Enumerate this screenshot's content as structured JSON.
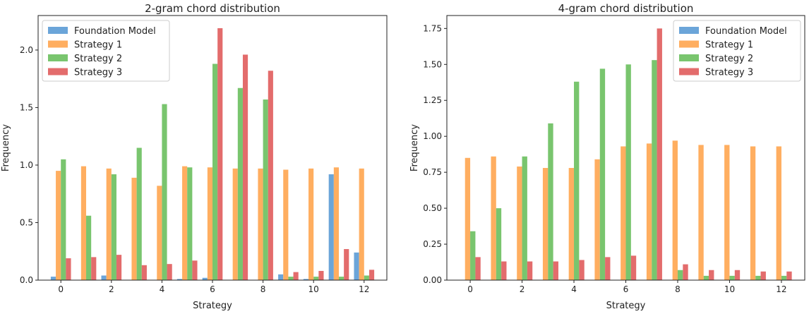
{
  "chart_data": [
    {
      "type": "bar",
      "title": "2-gram chord distribution",
      "xlabel": "Strategy",
      "ylabel": "Frequency",
      "categories": [
        0,
        1,
        2,
        3,
        4,
        5,
        6,
        7,
        8,
        9,
        10,
        11,
        12
      ],
      "xticks": [
        0,
        2,
        4,
        6,
        8,
        10,
        12
      ],
      "yticks": [
        0.0,
        0.5,
        1.0,
        1.5,
        2.0
      ],
      "ytick_labels": [
        "0.0",
        "0.5",
        "1.0",
        "1.5",
        "2.0"
      ],
      "xlim": [
        -0.9,
        12.9
      ],
      "ylim": [
        0,
        2.3
      ],
      "legend_position": "top-left",
      "grid": false,
      "series": [
        {
          "name": "Foundation Model",
          "color": "#5b9bd5",
          "values": [
            0.03,
            0,
            0.04,
            0,
            0,
            0.01,
            0.02,
            0,
            0,
            0.05,
            0.01,
            0.92,
            0.24
          ]
        },
        {
          "name": "Strategy 1",
          "color": "#ffa54f",
          "values": [
            0.95,
            0.99,
            0.97,
            0.89,
            0.82,
            0.99,
            0.98,
            0.97,
            0.97,
            0.96,
            0.97,
            0.98,
            0.97
          ]
        },
        {
          "name": "Strategy 2",
          "color": "#6abf5e",
          "values": [
            1.05,
            0.56,
            0.92,
            1.15,
            1.53,
            0.98,
            1.88,
            1.67,
            1.57,
            0.03,
            0.03,
            0.03,
            0.04
          ]
        },
        {
          "name": "Strategy 3",
          "color": "#e05c5c",
          "values": [
            0.19,
            0.2,
            0.22,
            0.13,
            0.14,
            0.17,
            2.19,
            1.96,
            1.82,
            0.07,
            0.08,
            0.27,
            0.09
          ]
        }
      ]
    },
    {
      "type": "bar",
      "title": "4-gram chord distribution",
      "xlabel": "Strategy",
      "ylabel": "Frequency",
      "categories": [
        0,
        1,
        2,
        3,
        4,
        5,
        6,
        7,
        8,
        9,
        10,
        11,
        12
      ],
      "xticks": [
        0,
        2,
        4,
        6,
        8,
        10,
        12
      ],
      "yticks": [
        0.0,
        0.25,
        0.5,
        0.75,
        1.0,
        1.25,
        1.5,
        1.75
      ],
      "ytick_labels": [
        "0.00",
        "0.25",
        "0.50",
        "0.75",
        "1.00",
        "1.25",
        "1.50",
        "1.75"
      ],
      "xlim": [
        -0.9,
        12.9
      ],
      "ylim": [
        0,
        1.84
      ],
      "legend_position": "top-right",
      "grid": false,
      "series": [
        {
          "name": "Foundation Model",
          "color": "#5b9bd5",
          "values": [
            0,
            0,
            0,
            0,
            0,
            0,
            0,
            0,
            0,
            0,
            0,
            0,
            0
          ]
        },
        {
          "name": "Strategy 1",
          "color": "#ffa54f",
          "values": [
            0.85,
            0.86,
            0.79,
            0.78,
            0.78,
            0.84,
            0.93,
            0.95,
            0.97,
            0.94,
            0.94,
            0.93,
            0.93
          ]
        },
        {
          "name": "Strategy 2",
          "color": "#6abf5e",
          "values": [
            0.34,
            0.5,
            0.86,
            1.09,
            1.38,
            1.47,
            1.5,
            1.53,
            0.07,
            0.03,
            0.03,
            0.03,
            0.03
          ]
        },
        {
          "name": "Strategy 3",
          "color": "#e05c5c",
          "values": [
            0.16,
            0.13,
            0.13,
            0.13,
            0.14,
            0.16,
            0.17,
            1.75,
            0.11,
            0.07,
            0.07,
            0.06,
            0.06
          ]
        }
      ]
    }
  ]
}
